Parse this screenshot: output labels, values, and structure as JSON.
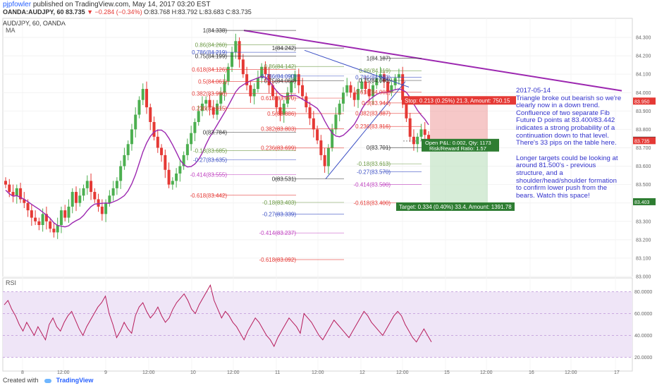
{
  "header": {
    "author": "pjpfowler",
    "published": "published on TradingView.com, May 14, 2017 03:20 EST",
    "symbol": "OANDA:AUDJPY, 60",
    "last": "83.735",
    "change": "−0.284 (−0.34%)",
    "ohlc": "O:83.768 H:83.792 L:83.683 C:83.735"
  },
  "pane_title": "AUD/JPY, 60, OANDA",
  "ma_label": "MA",
  "rsi_label": "RSI",
  "footer": {
    "created_with": "Created with",
    "brand": "TradingView"
  },
  "colors": {
    "up": "#4caf50",
    "down": "#e53935",
    "ma": "#9c27b0",
    "trend": "#9c27b0",
    "rsi": "#b71c5b",
    "rsi_band": "#efe5f7"
  },
  "annotation": {
    "paragraphs": [
      "2017-05-14\nTriangle broke out bearish so we're clearly now in a down trend.\nConfluence of two separate Fib Future D points at 83.400/83.442 indicates a strong probability of a continuation down to that level. There's 33 pips on the table here.",
      "Longer targets could be looking at around 81.500's - previous structure, and a shoulder/head/shoulder formation to confirm lower push from the bears. Watch this space!"
    ]
  },
  "chart_data": [
    {
      "type": "candlestick",
      "series_name": "AUD/JPY",
      "x_tick_labels": [
        "8",
        "12:00",
        "9",
        "12:00",
        "10",
        "12:00",
        "11",
        "12:00",
        "12",
        "12:00",
        "15",
        "12:00",
        "16",
        "12:00",
        "17"
      ],
      "y_tick_labels": [
        "84.300",
        "84.200",
        "84.100",
        "84.000",
        "83.900",
        "83.800",
        "83.700",
        "83.600",
        "83.500",
        "83.400",
        "83.300",
        "83.200",
        "83.100",
        "83.000"
      ],
      "ylim": [
        83.0,
        84.35
      ],
      "price_labels": [
        {
          "value": 83.95,
          "text": "83.950",
          "color": "#e53935"
        },
        {
          "value": 83.737,
          "text": "83.737",
          "color": "#222222"
        },
        {
          "value": 83.735,
          "text": "83.735",
          "color": "#e53935"
        },
        {
          "value": 83.403,
          "text": "83.403",
          "color": "#2e7d32"
        }
      ],
      "fib_levels": [
        {
          "label": "1(84.338)",
          "value": 84.338,
          "color": "#333333"
        },
        {
          "label": "0.86(84.260)",
          "value": 84.26,
          "color": "#6e9b47"
        },
        {
          "label": "0.786(84.219)",
          "value": 84.219,
          "color": "#3b4fc4"
        },
        {
          "label": "0.75(84.199)",
          "value": 84.199,
          "color": "#333333"
        },
        {
          "label": "0.618(84.126)",
          "value": 84.126,
          "color": "#e53935"
        },
        {
          "label": "0.5(84.061)",
          "value": 84.061,
          "color": "#e53935"
        },
        {
          "label": "0.382(83.996)",
          "value": 83.996,
          "color": "#e53935"
        },
        {
          "label": "0.236(83.915)",
          "value": 83.915,
          "color": "#e53935"
        },
        {
          "label": "0(83.784)",
          "value": 83.784,
          "color": "#333333"
        },
        {
          "label": "-0.18(83.685)",
          "value": 83.685,
          "color": "#6e9b47"
        },
        {
          "label": "-0.27(83.635)",
          "value": 83.635,
          "color": "#3b4fc4"
        },
        {
          "label": "-0.414(83.555)",
          "value": 83.555,
          "color": "#c040c0"
        },
        {
          "label": "-0.618(83.442)",
          "value": 83.442,
          "color": "#e53935"
        },
        {
          "label": "1(84.242)",
          "value": 84.242,
          "color": "#333333"
        },
        {
          "label": "0.86(84.142)",
          "value": 84.142,
          "color": "#6e9b47"
        },
        {
          "label": "0.786(84.090)",
          "value": 84.09,
          "color": "#3b4fc4"
        },
        {
          "label": "0.75(84.064)",
          "value": 84.064,
          "color": "#333333"
        },
        {
          "label": "0.618(83.970)",
          "value": 83.97,
          "color": "#e53935"
        },
        {
          "label": "0.5(83.886)",
          "value": 83.886,
          "color": "#e53935"
        },
        {
          "label": "0.382(83.803)",
          "value": 83.803,
          "color": "#e53935"
        },
        {
          "label": "0.236(83.699)",
          "value": 83.699,
          "color": "#e53935"
        },
        {
          "label": "0(83.531)",
          "value": 83.531,
          "color": "#333333"
        },
        {
          "label": "-0.18(83.403)",
          "value": 83.403,
          "color": "#6e9b47"
        },
        {
          "label": "-0.27(83.339)",
          "value": 83.339,
          "color": "#3b4fc4"
        },
        {
          "label": "-0.414(83.237)",
          "value": 83.237,
          "color": "#c040c0"
        },
        {
          "label": "-0.618(83.092)",
          "value": 83.092,
          "color": "#e53935"
        },
        {
          "label": "1(84.187)",
          "value": 84.187,
          "color": "#333333"
        },
        {
          "label": "0.86(84.119)",
          "value": 84.119,
          "color": "#6e9b47"
        },
        {
          "label": "0.786(84.083)",
          "value": 84.083,
          "color": "#3b4fc4"
        },
        {
          "label": "0.75(84.066)",
          "value": 84.066,
          "color": "#333333"
        },
        {
          "label": "0.618(84.002)",
          "value": 84.002,
          "color": "#e53935"
        },
        {
          "label": "0.5(83.944)",
          "value": 83.944,
          "color": "#e53935"
        },
        {
          "label": "0.382(83.887)",
          "value": 83.887,
          "color": "#e53935"
        },
        {
          "label": "0.236(83.816)",
          "value": 83.816,
          "color": "#e53935"
        },
        {
          "label": "0(83.701)",
          "value": 83.701,
          "color": "#333333"
        },
        {
          "label": "-0.18(83.613)",
          "value": 83.613,
          "color": "#6e9b47"
        },
        {
          "label": "-0.27(83.570)",
          "value": 83.57,
          "color": "#3b4fc4"
        },
        {
          "label": "-0.414(83.500)",
          "value": 83.5,
          "color": "#c040c0"
        },
        {
          "label": "-0.618(83.400)",
          "value": 83.4,
          "color": "#e53935"
        }
      ],
      "position": {
        "stop_label": "Stop: 0.213 (0.25%) 21.3, Amount: 750.15",
        "pnl_label": "Open P&L: 0.002, Qty: 1173",
        "rr_label": "Risk/Reward Ratio: 1.57",
        "target_label": "Target: 0.334 (0.40%) 33.4, Amount: 1391.78",
        "entry": 83.737,
        "stop": 83.95,
        "target": 83.403
      }
    },
    {
      "type": "line",
      "series_name": "RSI",
      "y_tick_labels": [
        "80.0000",
        "60.0000",
        "40.0000",
        "20.0000"
      ],
      "ylim": [
        10,
        90
      ],
      "band": [
        20,
        80
      ]
    }
  ]
}
